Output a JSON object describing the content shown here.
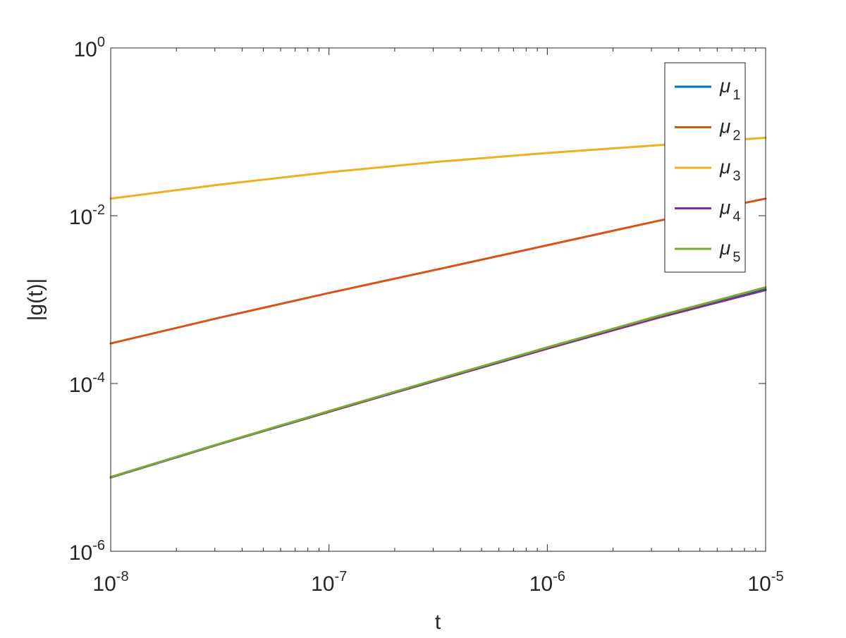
{
  "chart_data": {
    "type": "line",
    "title": "",
    "xlabel": "t",
    "ylabel": "|g(t)|",
    "x_scale": "log",
    "y_scale": "log",
    "xlim": [
      1e-08,
      1e-05
    ],
    "ylim": [
      1e-06,
      1
    ],
    "x_ticks": [
      {
        "value": 1e-08,
        "base": "10",
        "exp": "-8"
      },
      {
        "value": 1e-07,
        "base": "10",
        "exp": "-7"
      },
      {
        "value": 1e-06,
        "base": "10",
        "exp": "-6"
      },
      {
        "value": 1e-05,
        "base": "10",
        "exp": "-5"
      }
    ],
    "y_ticks": [
      {
        "value": 1e-06,
        "base": "10",
        "exp": "-6"
      },
      {
        "value": 0.0001,
        "base": "10",
        "exp": "-4"
      },
      {
        "value": 0.01,
        "base": "10",
        "exp": "-2"
      },
      {
        "value": 1,
        "base": "10",
        "exp": "0"
      }
    ],
    "grid": false,
    "box": true,
    "legend_position": "top-right",
    "series": [
      {
        "name": "μ",
        "sub": "1",
        "color": "#0072BD",
        "x": [
          1e-08,
          3.16e-08,
          1e-07,
          3.16e-07,
          1e-06,
          3.16e-06,
          1e-05
        ],
        "y": [
          7.6e-06,
          1.9e-05,
          4.65e-05,
          0.000112,
          0.000265,
          0.000615,
          0.00133
        ]
      },
      {
        "name": "μ",
        "sub": "2",
        "color": "#D95319",
        "x": [
          1e-08,
          3.16e-08,
          1e-07,
          3.16e-07,
          1e-06,
          3.16e-06,
          1e-05
        ],
        "y": [
          0.0003,
          0.00061,
          0.0012,
          0.0023,
          0.00445,
          0.0086,
          0.016
        ]
      },
      {
        "name": "μ",
        "sub": "3",
        "color": "#EDB120",
        "x": [
          1e-08,
          3.16e-08,
          1e-07,
          3.16e-07,
          1e-06,
          3.16e-06,
          1e-05
        ],
        "y": [
          0.016,
          0.0235,
          0.033,
          0.044,
          0.056,
          0.069,
          0.085
        ]
      },
      {
        "name": "μ",
        "sub": "4",
        "color": "#7E2F8E",
        "x": [
          1e-08,
          3.16e-08,
          1e-07,
          3.16e-07,
          1e-06,
          3.16e-06,
          1e-05
        ],
        "y": [
          7.6e-06,
          1.9e-05,
          4.6e-05,
          0.00011,
          0.00026,
          0.0006,
          0.0013
        ]
      },
      {
        "name": "μ",
        "sub": "5",
        "color": "#77AC30",
        "x": [
          1e-08,
          3.16e-08,
          1e-07,
          3.16e-07,
          1e-06,
          3.16e-06,
          1e-05
        ],
        "y": [
          7.7e-06,
          1.92e-05,
          4.7e-05,
          0.000113,
          0.00027,
          0.00063,
          0.0014
        ]
      }
    ]
  }
}
